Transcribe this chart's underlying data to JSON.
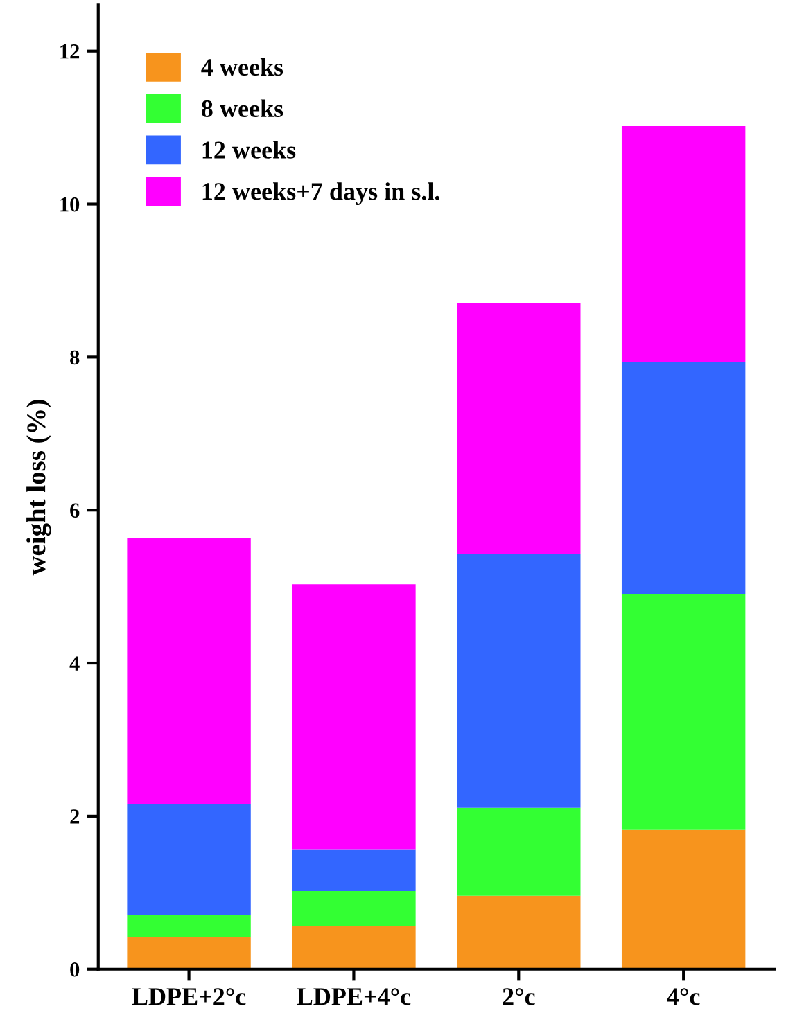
{
  "chart_data": {
    "type": "bar",
    "stacked": true,
    "ylabel": "weight loss (%)",
    "categories": [
      "LDPE+2°c",
      "LDPE+4°c",
      "2°c",
      "4°c"
    ],
    "series": [
      {
        "name": "4 weeks",
        "color": "#f7941d",
        "values": [
          0.42,
          0.56,
          0.96,
          1.82
        ]
      },
      {
        "name": "8 weeks",
        "color": "#33ff33",
        "values": [
          0.29,
          0.46,
          1.15,
          3.08
        ]
      },
      {
        "name": "12 weeks",
        "color": "#3366ff",
        "values": [
          1.45,
          0.54,
          3.32,
          3.03
        ]
      },
      {
        "name": "12 weeks+7 days in s.l.",
        "color": "#ff00ff",
        "values": [
          3.47,
          3.47,
          3.28,
          3.09
        ]
      }
    ],
    "ylim": [
      0,
      12.6
    ],
    "yticks": [
      0,
      2,
      4,
      6,
      8,
      10,
      12
    ],
    "grid": false,
    "legend": "top left"
  }
}
